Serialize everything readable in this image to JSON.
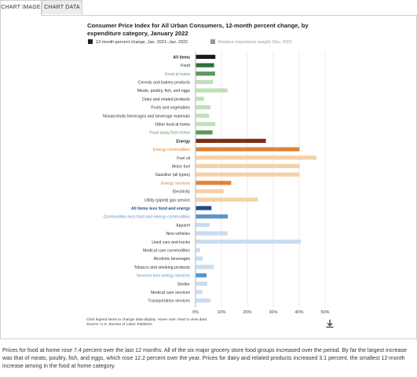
{
  "tabs": [
    {
      "label": "CHART IMAGE",
      "active": true
    },
    {
      "label": "CHART DATA",
      "active": false
    }
  ],
  "title": "Consumer Price Index for All Urban Consumers, 12-month percent change, by expenditure category, January 2022",
  "legend": [
    {
      "label": "12-month percent change, Jan. 2021–Jan. 2022",
      "color": "#222222",
      "active": true
    },
    {
      "label": "Relative importance weight, Dec. 2021",
      "color": "#999999",
      "active": false
    }
  ],
  "footnote_line1": "Click legend items to change data display. Hover over chart to view data.",
  "footnote_line2": "Source: U.S. Bureau of Labor Statistics.",
  "download_icon": "download-icon",
  "paragraph": "Prices for food at home rose 7.4 percent over the last 12 months. All of the six major grocery store food groups increased over the period. By far the largest increase was that of meats, poultry, fish, and eggs, which rose 12.2 percent over the year. Prices for dairy and related products increased 3.1 percent, the smallest 12-month increase among in the food at home category.",
  "chart_data": {
    "type": "bar",
    "orientation": "horizontal",
    "x_ticks": [
      "0%",
      "10%",
      "20%",
      "30%",
      "40%",
      "50%"
    ],
    "xlim": [
      0,
      50
    ],
    "grid": true,
    "categories": [
      {
        "label": "All items",
        "value": 7.5,
        "label_color": "#222222",
        "bold": true,
        "bar_color": "#1a1a1a"
      },
      {
        "label": "Food",
        "value": 7.0,
        "label_color": "#222222",
        "bold": false,
        "bar_color": "#2f6f3a"
      },
      {
        "label": "Food at home",
        "value": 7.4,
        "label_color": "#5a9a58",
        "bold": false,
        "bar_color": "#5a9a58"
      },
      {
        "label": "Cereals and bakery products",
        "value": 6.6,
        "label_color": "#333333",
        "bold": false,
        "bar_color": "#bfe0b9"
      },
      {
        "label": "Meats, poultry, fish, and eggs",
        "value": 12.2,
        "label_color": "#333333",
        "bold": false,
        "bar_color": "#bfe0b9"
      },
      {
        "label": "Dairy and related products",
        "value": 3.1,
        "label_color": "#333333",
        "bold": false,
        "bar_color": "#bfe0b9"
      },
      {
        "label": "Fruits and vegetables",
        "value": 5.6,
        "label_color": "#333333",
        "bold": false,
        "bar_color": "#bfe0b9"
      },
      {
        "label": "Nonalcoholic beverages and beverage materials",
        "value": 5.1,
        "label_color": "#333333",
        "bold": false,
        "bar_color": "#bfe0b9"
      },
      {
        "label": "Other food at home",
        "value": 7.5,
        "label_color": "#333333",
        "bold": false,
        "bar_color": "#bfe0b9"
      },
      {
        "label": "Food away from home",
        "value": 6.4,
        "label_color": "#5a9a58",
        "bold": false,
        "bar_color": "#5a9a58"
      },
      {
        "label": "Energy",
        "value": 27.0,
        "label_color": "#222222",
        "bold": true,
        "bar_color": "#7a2f10"
      },
      {
        "label": "Energy commodities",
        "value": 40.0,
        "label_color": "#e0843a",
        "bold": false,
        "bar_color": "#e0843a"
      },
      {
        "label": "Fuel oil",
        "value": 46.5,
        "label_color": "#333333",
        "bold": false,
        "bar_color": "#f6d1a8"
      },
      {
        "label": "Motor fuel",
        "value": 40.0,
        "label_color": "#333333",
        "bold": false,
        "bar_color": "#f6d1a8"
      },
      {
        "label": "Gasoline (all types)",
        "value": 40.0,
        "label_color": "#333333",
        "bold": false,
        "bar_color": "#f6d1a8"
      },
      {
        "label": "Energy services",
        "value": 13.6,
        "label_color": "#e0843a",
        "bold": false,
        "bar_color": "#e0843a"
      },
      {
        "label": "Electricity",
        "value": 10.7,
        "label_color": "#333333",
        "bold": false,
        "bar_color": "#f6d1a8"
      },
      {
        "label": "Utility (piped) gas service",
        "value": 23.9,
        "label_color": "#333333",
        "bold": false,
        "bar_color": "#f6d1a8"
      },
      {
        "label": "All items less food and energy",
        "value": 6.0,
        "label_color": "#1f4e8c",
        "bold": true,
        "bar_color": "#1f4e8c"
      },
      {
        "label": "Commodities less food and energy commodities",
        "value": 12.3,
        "label_color": "#5b95c6",
        "bold": false,
        "bar_color": "#5b95c6"
      },
      {
        "label": "Apparel",
        "value": 5.3,
        "label_color": "#333333",
        "bold": false,
        "bar_color": "#c9dcef"
      },
      {
        "label": "New vehicles",
        "value": 12.2,
        "label_color": "#333333",
        "bold": false,
        "bar_color": "#c9dcef"
      },
      {
        "label": "Used cars and trucks",
        "value": 40.5,
        "label_color": "#333333",
        "bold": false,
        "bar_color": "#c9dcef"
      },
      {
        "label": "Medical care commodities",
        "value": 1.6,
        "label_color": "#333333",
        "bold": false,
        "bar_color": "#c9dcef"
      },
      {
        "label": "Alcoholic beverages",
        "value": 2.6,
        "label_color": "#333333",
        "bold": false,
        "bar_color": "#c9dcef"
      },
      {
        "label": "Tobacco and smoking products",
        "value": 6.9,
        "label_color": "#333333",
        "bold": false,
        "bar_color": "#c9dcef"
      },
      {
        "label": "Services less energy services",
        "value": 4.1,
        "label_color": "#5b95c6",
        "bold": false,
        "bar_color": "#5b95c6"
      },
      {
        "label": "Shelter",
        "value": 4.4,
        "label_color": "#333333",
        "bold": false,
        "bar_color": "#c9dcef"
      },
      {
        "label": "Medical care services",
        "value": 2.5,
        "label_color": "#333333",
        "bold": false,
        "bar_color": "#c9dcef"
      },
      {
        "label": "Transportation services",
        "value": 5.6,
        "label_color": "#333333",
        "bold": false,
        "bar_color": "#c9dcef"
      }
    ]
  }
}
